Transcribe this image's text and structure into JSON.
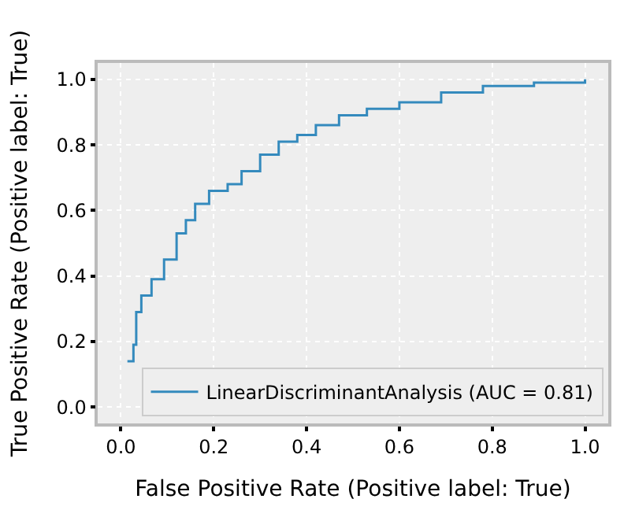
{
  "chart_data": {
    "type": "step",
    "xlabel": "False Positive Rate (Positive label: True)",
    "ylabel": "True Positive Rate (Positive label: True)",
    "x": [
      0.014,
      0.027,
      0.033,
      0.044,
      0.066,
      0.093,
      0.12,
      0.14,
      0.16,
      0.19,
      0.23,
      0.26,
      0.3,
      0.34,
      0.38,
      0.42,
      0.47,
      0.53,
      0.6,
      0.69,
      0.78,
      0.89,
      0.96,
      1.0
    ],
    "series": [
      {
        "name": "LinearDiscriminantAnalysis (AUC = 0.81)",
        "color": "#348abd",
        "values": [
          0.14,
          0.19,
          0.29,
          0.34,
          0.39,
          0.45,
          0.53,
          0.57,
          0.62,
          0.66,
          0.68,
          0.72,
          0.77,
          0.81,
          0.83,
          0.86,
          0.89,
          0.91,
          0.93,
          0.96,
          0.98,
          0.99,
          0.99,
          1.0
        ]
      }
    ],
    "xlim": [
      -0.05,
      1.05
    ],
    "ylim": [
      -0.05,
      1.05
    ],
    "xticks": [
      {
        "value": 0,
        "label": "0.0"
      },
      0.2,
      0.4,
      0.6,
      0.8,
      {
        "value": 1,
        "label": "1.0"
      }
    ],
    "yticks": [
      {
        "value": 0,
        "label": "0.0"
      },
      0.2,
      0.4,
      0.6,
      0.8,
      {
        "value": 1,
        "label": "1.0"
      }
    ],
    "grid": true,
    "legend": "bottom right"
  }
}
